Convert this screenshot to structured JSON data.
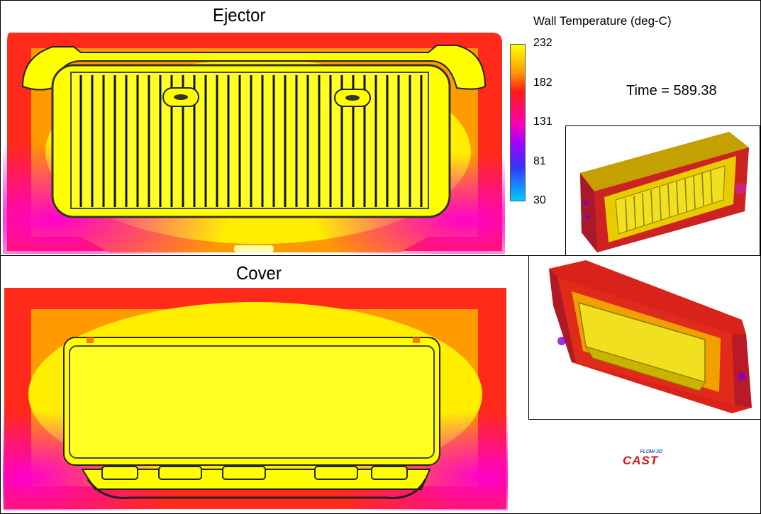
{
  "ejector": {
    "title": "Ejector"
  },
  "cover": {
    "title": "Cover"
  },
  "legend": {
    "title": "Wall Temperature (deg-C)",
    "ticks": [
      "232",
      "182",
      "131",
      "81",
      "30"
    ],
    "colors": [
      "#ffff00",
      "#ff9900",
      "#ff1a1a",
      "#ff00aa",
      "#aa00ff",
      "#3333ff",
      "#00ccff"
    ]
  },
  "time": {
    "label": "Time = 589.38"
  },
  "logo": {
    "top": "FLOW-3D",
    "main": "CAST"
  }
}
